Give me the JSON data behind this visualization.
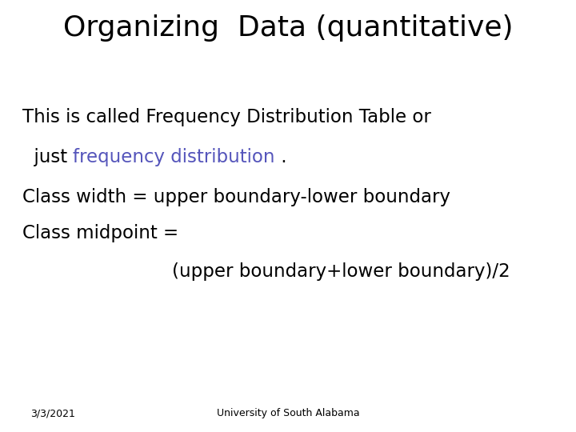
{
  "title": "Organizing  Data (quantitative)",
  "title_fontsize": 26,
  "title_color": "#000000",
  "background_color": "#ffffff",
  "text_fontsize": 16.5,
  "blue_color": "#5555bb",
  "black_color": "#000000",
  "footer_left": "3/3/2021",
  "footer_center": "University of South Alabama",
  "footer_fontsize": 9,
  "footer_color": "#000000"
}
